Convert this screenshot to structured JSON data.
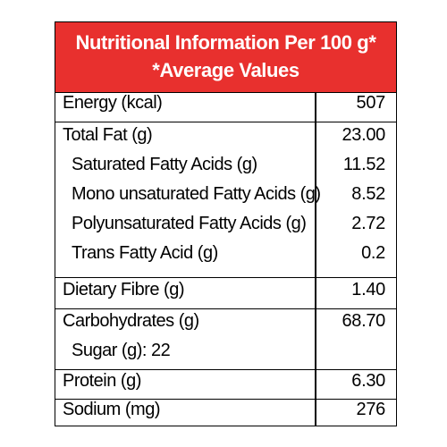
{
  "colors": {
    "header_background": "#e8302e",
    "header_text": "#ffffff",
    "border": "#000000"
  },
  "header": {
    "line1": "Nutritional Information Per 100 g*",
    "line2": "*Average Values"
  },
  "rows": {
    "energy": {
      "label": "Energy (kcal)",
      "value": "507"
    },
    "total_fat": {
      "label": "Total Fat (g)",
      "value": "23.00"
    },
    "saturated": {
      "label": "Saturated Fatty Acids (g)",
      "value": "11.52"
    },
    "mono": {
      "label": "Mono unsaturated Fatty Acids (g)",
      "value": "8.52"
    },
    "poly": {
      "label": "Polyunsaturated Fatty Acids (g)",
      "value": "2.72"
    },
    "trans": {
      "label": "Trans Fatty Acid (g)",
      "value": "0.2"
    },
    "fibre": {
      "label": "Dietary Fibre (g)",
      "value": "1.40"
    },
    "carbs": {
      "label": "Carbohydrates  (g)",
      "value": "68.70"
    },
    "sugar": {
      "label": "Sugar (g): 22"
    },
    "protein": {
      "label": "Protein (g)",
      "value": "6.30"
    },
    "sodium": {
      "label": "Sodium (mg)",
      "value": "276"
    }
  }
}
